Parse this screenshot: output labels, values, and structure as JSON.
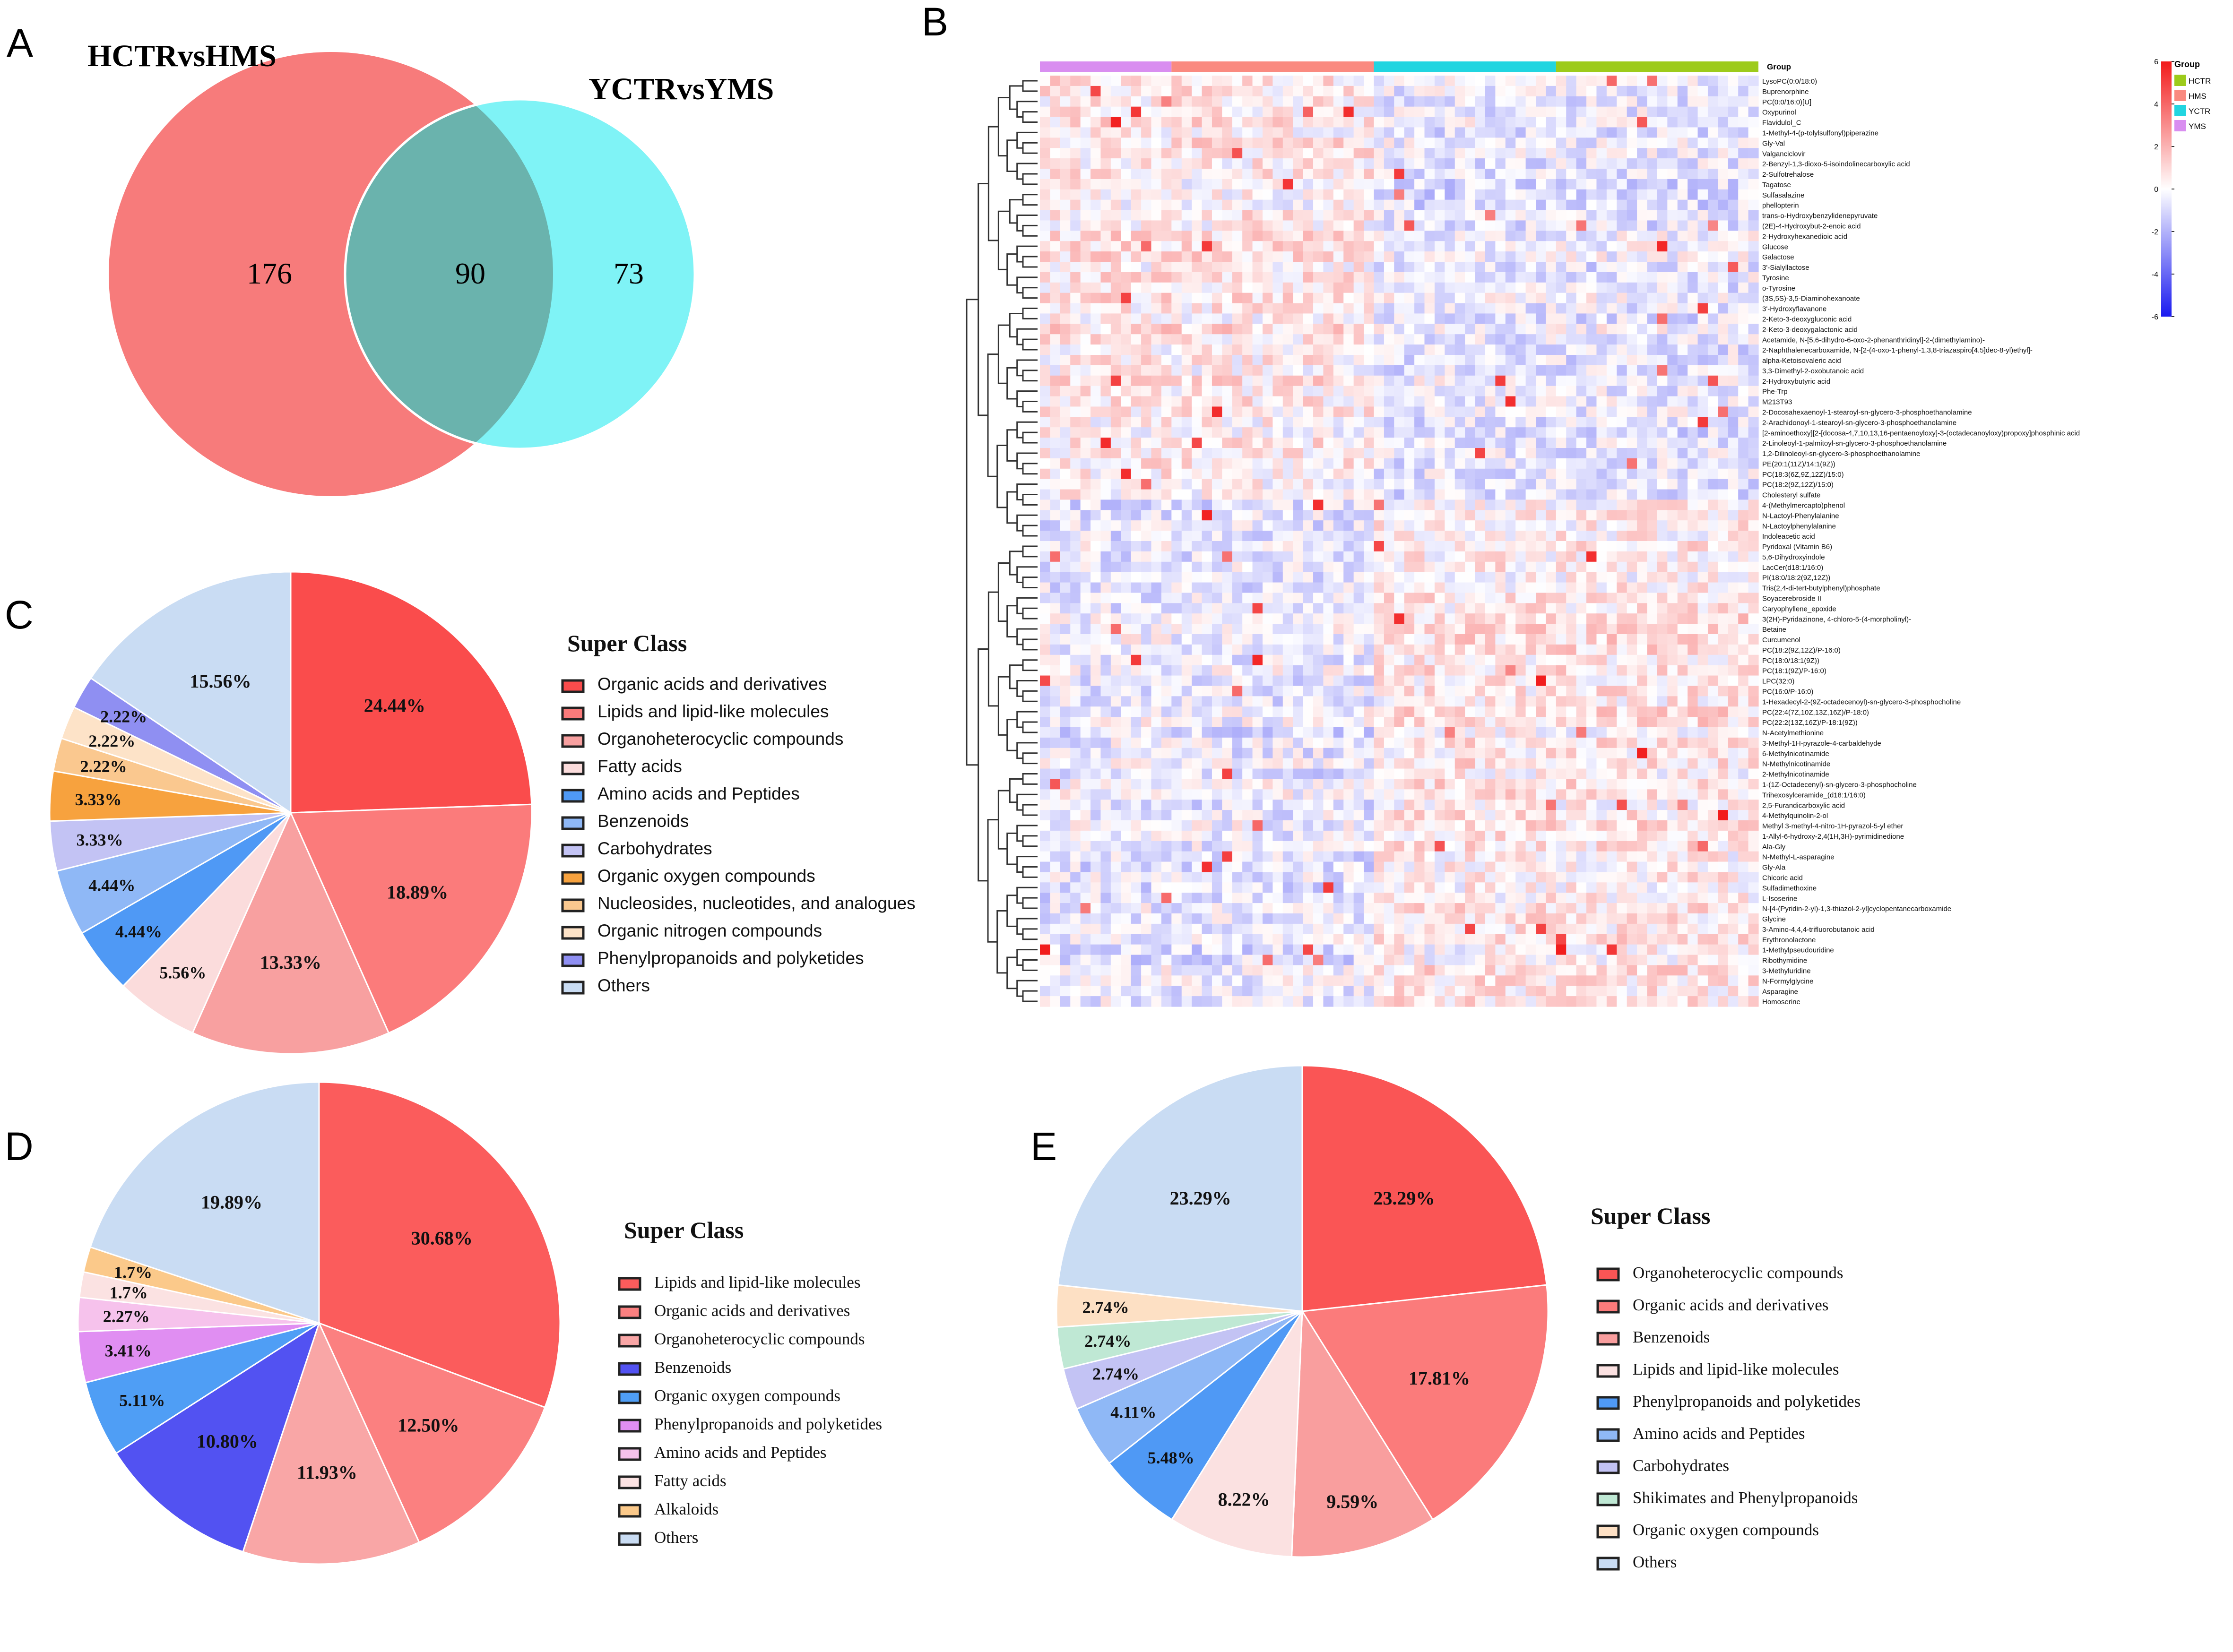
{
  "panels": {
    "A": "A",
    "B": "B",
    "C": "C",
    "D": "D",
    "E": "E"
  },
  "chart_data": [
    {
      "id": "A",
      "type": "venn",
      "sets": [
        {
          "name": "HCTRvsHMS",
          "only": 176,
          "color": "#f77b7b"
        },
        {
          "name": "YCTRvsYMS",
          "only": 73,
          "color": "#7ff3f6"
        }
      ],
      "overlap": 90,
      "overlap_color": "#6ab3ad"
    },
    {
      "id": "B",
      "type": "heatmap",
      "scale": {
        "max": 6,
        "min": -6,
        "ticks": [
          6,
          4,
          2,
          0,
          -2,
          -4,
          -6
        ],
        "colors": [
          "#f21b1b",
          "#ffffff",
          "#1a1af0"
        ]
      },
      "legend_title": "Group",
      "group_label": "Group",
      "groups": [
        {
          "name": "HCTR",
          "color": "#9dcb1b",
          "columns": 20
        },
        {
          "name": "HMS",
          "color": "#fa8a80",
          "columns": 20
        },
        {
          "name": "YCTR",
          "color": "#21d5e0",
          "columns": 18
        },
        {
          "name": "YMS",
          "color": "#d98ef0",
          "columns": 13
        }
      ],
      "column_order": [
        "YMS",
        "HMS",
        "YCTR",
        "HCTR"
      ],
      "rows": [
        "LysoPC(0:0/18:0)",
        "Buprenorphine",
        "PC(0:0/16:0)[U]",
        "Oxypurinol",
        "Flavidulol_C",
        "1-Methyl-4-(p-tolylsulfonyl)piperazine",
        "Gly-Val",
        "Valganciclovir",
        "2-Benzyl-1,3-dioxo-5-isoindolinecarboxylic acid",
        "2-Sulfotrehalose",
        "Tagatose",
        "Sulfasalazine",
        "phellopterin",
        "trans-o-Hydroxybenzylidenepyruvate",
        "(2E)-4-Hydroxybut-2-enoic acid",
        "2-Hydroxyhexanedioic acid",
        "Glucose",
        "Galactose",
        "3'-Sialyllactose",
        "Tyrosine",
        "o-Tyrosine",
        "(3S,5S)-3,5-Diaminohexanoate",
        "3'-Hydroxyflavanone",
        "2-Keto-3-deoxygluconic acid",
        "2-Keto-3-deoxygalactonic acid",
        "Acetamide, N-[5,6-dihydro-6-oxo-2-phenanthridinyl]-2-(dimethylamino)-",
        "2-Naphthalenecarboxamide, N-[2-(4-oxo-1-phenyl-1,3,8-triazaspiro[4.5]dec-8-yl)ethyl]-",
        "alpha-Ketoisovaleric acid",
        "3,3-Dimethyl-2-oxobutanoic acid",
        "2-Hydroxybutyric acid",
        "Phe-Trp",
        "M213T93",
        "2-Docosahexaenoyl-1-stearoyl-sn-glycero-3-phosphoethanolamine",
        "2-Arachidonoyl-1-stearoyl-sn-glycero-3-phosphoethanolamine",
        "[2-aminoethoxy][2-[docosa-4,7,10,13,16-pentaenoyloxy]-3-(octadecanoyloxy)propoxy]phosphinic acid",
        "2-Linoleoyl-1-palmitoyl-sn-glycero-3-phosphoethanolamine",
        "1,2-Dilinoleoyl-sn-glycero-3-phosphoethanolamine",
        "PE(20:1(11Z)/14:1(9Z))",
        "PC(18:3(6Z,9Z,12Z)/15:0)",
        "PC(18:2(9Z,12Z)/15:0)",
        "Cholesteryl sulfate",
        "4-(Methylmercapto)phenol",
        "N-Lactoyl-Phenylalanine",
        "N-Lactoylphenylalanine",
        "Indoleacetic acid",
        "Pyridoxal (Vitamin B6)",
        "5,6-Dihydroxyindole",
        "LacCer(d18:1/16:0)",
        "PI(18:0/18:2(9Z,12Z))",
        "Tris(2,4-di-tert-butylphenyl)phosphate",
        "Soyacerebroside II",
        "Caryophyllene_epoxide",
        "3(2H)-Pyridazinone, 4-chloro-5-(4-morpholinyl)-",
        "Betaine",
        "Curcumenol",
        "PC(18:2(9Z,12Z)/P-16:0)",
        "PC(18:0/18:1(9Z))",
        "PC(18:1(9Z)/P-16:0)",
        "LPC(32:0)",
        "PC(16:0/P-16:0)",
        "1-Hexadecyl-2-(9Z-octadecenoyl)-sn-glycero-3-phosphocholine",
        "PC(22:4(7Z,10Z,13Z,16Z)/P-18:0)",
        "PC(22:2(13Z,16Z)/P-18:1(9Z))",
        "N-Acetylmethionine",
        "3-Methyl-1H-pyrazole-4-carbaldehyde",
        "6-Methylnicotinamide",
        "N-Methylnicotinamide",
        "2-Methylnicotinamide",
        "1-(1Z-Octadecenyl)-sn-glycero-3-phosphocholine",
        "Trihexosylceramide_(d18:1/16:0)",
        "2,5-Furandicarboxylic acid",
        "4-Methylquinolin-2-ol",
        "Methyl 3-methyl-4-nitro-1H-pyrazol-5-yl ether",
        "1-Allyl-6-hydroxy-2,4(1H,3H)-pyrimidinedione",
        "Ala-Gly",
        "N-Methyl-L-asparagine",
        "Gly-Ala",
        "Chicoric acid",
        "Sulfadimethoxine",
        "L-Isoserine",
        "N-[4-(Pyridin-2-yl)-1,3-thiazol-2-yl]cyclopentanecarboxamide",
        "Glycine",
        "3-Amino-4,4,4-trifluorobutanoic acid",
        "Erythronolactone",
        "1-Methylpseudouridine",
        "Ribothymidine",
        "3-Methyluridine",
        "N-Formylglycine",
        "Asparagine",
        "Homoserine"
      ]
    },
    {
      "id": "C",
      "type": "pie",
      "legend_title": "Super Class",
      "legend_font": "sans",
      "slices": [
        {
          "label": "Organic acids and derivatives",
          "value": 24.44,
          "text": "24.44%",
          "color": "#fa4c4c"
        },
        {
          "label": "Lipids and lipid-like molecules",
          "value": 18.89,
          "text": "18.89%",
          "color": "#fb7b7b"
        },
        {
          "label": "Organoheterocyclic compounds",
          "value": 13.33,
          "text": "13.33%",
          "color": "#f8a0a0"
        },
        {
          "label": "Fatty acids",
          "value": 5.56,
          "text": "5.56%",
          "color": "#fbdcdc"
        },
        {
          "label": "Amino acids and Peptides",
          "value": 4.44,
          "text": "4.44%",
          "color": "#4f99f5"
        },
        {
          "label": "Benzenoids",
          "value": 4.44,
          "text": "4.44%",
          "color": "#8fb8f6"
        },
        {
          "label": "Carbohydrates",
          "value": 3.33,
          "text": "3.33%",
          "color": "#c3c3f4"
        },
        {
          "label": "Organic oxygen compounds",
          "value": 3.33,
          "text": "3.33%",
          "color": "#f7a23e"
        },
        {
          "label": "Nucleosides, nucleotides, and analogues",
          "value": 2.22,
          "text": "2.22%",
          "color": "#fac88f"
        },
        {
          "label": "Organic nitrogen compounds",
          "value": 2.22,
          "text": "2.22%",
          "color": "#fde3c8"
        },
        {
          "label": "Phenylpropanoids and polyketides",
          "value": 2.22,
          "text": "2.22%",
          "color": "#8f8ff2"
        },
        {
          "label": "Others",
          "value": 15.56,
          "text": "15.56%",
          "color": "#c9dcf3"
        }
      ]
    },
    {
      "id": "D",
      "type": "pie",
      "legend_title": "Super Class",
      "legend_font": "serif",
      "slices": [
        {
          "label": "Lipids and lipid-like molecules",
          "value": 30.68,
          "text": "30.68%",
          "color": "#fb5c5c"
        },
        {
          "label": "Organic acids and derivatives",
          "value": 12.5,
          "text": "12.50%",
          "color": "#fb8080"
        },
        {
          "label": "Organoheterocyclic compounds",
          "value": 11.93,
          "text": "11.93%",
          "color": "#f9a6a6"
        },
        {
          "label": "Benzenoids",
          "value": 10.8,
          "text": "10.80%",
          "color": "#5252f2"
        },
        {
          "label": "Organic oxygen compounds",
          "value": 5.11,
          "text": "5.11%",
          "color": "#4f9ef5"
        },
        {
          "label": "Phenylpropanoids and polyketides",
          "value": 3.41,
          "text": "3.41%",
          "color": "#e08ef2"
        },
        {
          "label": "Amino acids and Peptides",
          "value": 2.27,
          "text": "2.27%",
          "color": "#f6c2ec"
        },
        {
          "label": "Fatty acids",
          "value": 1.7,
          "text": "1.7%",
          "color": "#fbe2e2"
        },
        {
          "label": "Alkaloids",
          "value": 1.7,
          "text": "1.7%",
          "color": "#fbc98a"
        },
        {
          "label": "Others",
          "value": 19.89,
          "text": "19.89%",
          "color": "#c9dcf3"
        }
      ]
    },
    {
      "id": "E",
      "type": "pie",
      "legend_title": "Super Class",
      "legend_font": "serif",
      "slices": [
        {
          "label": "Organoheterocyclic compounds",
          "value": 23.29,
          "text": "23.29%",
          "color": "#fa5555"
        },
        {
          "label": "Organic acids and derivatives",
          "value": 17.81,
          "text": "17.81%",
          "color": "#fb7b7b"
        },
        {
          "label": "Benzenoids",
          "value": 9.59,
          "text": "9.59%",
          "color": "#f99e9e"
        },
        {
          "label": "Lipids and lipid-like molecules",
          "value": 8.22,
          "text": "8.22%",
          "color": "#fbe1e1"
        },
        {
          "label": "Phenylpropanoids and polyketides",
          "value": 5.48,
          "text": "5.48%",
          "color": "#4f99f5"
        },
        {
          "label": "Amino acids and Peptides",
          "value": 4.11,
          "text": "4.11%",
          "color": "#8fb8f6"
        },
        {
          "label": "Carbohydrates",
          "value": 2.74,
          "text": "2.74%",
          "color": "#c3c3f4"
        },
        {
          "label": "Shikimates and Phenylpropanoids",
          "value": 2.74,
          "text": "2.74%",
          "color": "#bfe8d4"
        },
        {
          "label": "Organic oxygen compounds",
          "value": 2.74,
          "text": "2.74%",
          "color": "#fde0c4"
        },
        {
          "label": "Others",
          "value": 23.29,
          "text": "23.29%",
          "color": "#c9dcf3"
        }
      ]
    }
  ]
}
